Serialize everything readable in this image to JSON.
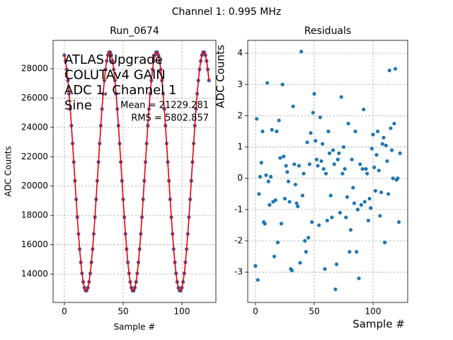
{
  "suptitle": "Channel 1: 0.995 MHz",
  "chart_data": [
    {
      "type": "line",
      "title": "Run_0674",
      "xlabel": "Sample #",
      "ylabel": "ADC Counts",
      "annotations": [
        "ATLAS Upgrade",
        "COLUTAv4 GAIN",
        "ADC 1, Channel 1",
        "Sine"
      ],
      "stats": [
        "Mean = 21229.281",
        "RMS = 5802.857"
      ],
      "xlim": [
        -9.6,
        128.9
      ],
      "ylim": [
        12070,
        29930
      ],
      "xticks": [
        0,
        50,
        100
      ],
      "yticks": [
        14000,
        16000,
        18000,
        20000,
        22000,
        24000,
        26000,
        28000
      ],
      "grid": true,
      "x": [
        0,
        1,
        2,
        3,
        4,
        5,
        6,
        7,
        8,
        9,
        10,
        11,
        12,
        13,
        14,
        15,
        16,
        17,
        18,
        19,
        20,
        21,
        22,
        23,
        24,
        25,
        26,
        27,
        28,
        29,
        30,
        31,
        32,
        33,
        34,
        35,
        36,
        37,
        38,
        39,
        40,
        41,
        42,
        43,
        44,
        45,
        46,
        47,
        48,
        49,
        50,
        51,
        52,
        53,
        54,
        55,
        56,
        57,
        58,
        59,
        60,
        61,
        62,
        63,
        64,
        65,
        66,
        67,
        68,
        69,
        70,
        71,
        72,
        73,
        74,
        75,
        76,
        77,
        78,
        79,
        80,
        81,
        82,
        83,
        84,
        85,
        86,
        87,
        88,
        89,
        90,
        91,
        92,
        93,
        94,
        95,
        96,
        97,
        98,
        99,
        100,
        101,
        102,
        103,
        104,
        105,
        106,
        107,
        108,
        109,
        110,
        111,
        112,
        113,
        114,
        115,
        116,
        117,
        118,
        119,
        120,
        121,
        122,
        123
      ],
      "series": [
        {
          "color": "#e8000b",
          "marker_color": "#4c5a9a",
          "values": [
            28925,
            28530,
            27949,
            27197,
            26293,
            25258,
            24119,
            22902,
            21640,
            20360,
            19098,
            17881,
            16742,
            15707,
            14803,
            14051,
            13470,
            13075,
            12875,
            12875,
            13075,
            13470,
            14051,
            14803,
            15707,
            16742,
            17881,
            19098,
            20360,
            21640,
            22902,
            24119,
            25258,
            26293,
            27197,
            27949,
            28530,
            28925,
            29125,
            29125,
            28925,
            28530,
            27949,
            27197,
            26293,
            25258,
            24119,
            22902,
            21640,
            20360,
            19098,
            17881,
            16742,
            15707,
            14803,
            14051,
            13470,
            13075,
            12875,
            12875,
            13075,
            13470,
            14051,
            14803,
            15707,
            16742,
            17881,
            19098,
            20360,
            21640,
            22902,
            24119,
            25258,
            26293,
            27197,
            27949,
            28530,
            28925,
            29125,
            29125,
            28925,
            28530,
            27949,
            27197,
            26293,
            25258,
            24119,
            22902,
            21640,
            20360,
            19098,
            17881,
            16742,
            15707,
            14803,
            14051,
            13470,
            13075,
            12875,
            12875,
            13075,
            13470,
            14051,
            14803,
            15707,
            16742,
            17881,
            19098,
            20360,
            21640,
            22902,
            24119,
            25258,
            26293,
            27197,
            27949,
            28530,
            28925,
            29125,
            29125,
            28925,
            28530,
            27949,
            27197
          ]
        }
      ]
    },
    {
      "type": "scatter",
      "title": "Residuals",
      "xlabel": "Sample #",
      "ylabel": "ADC Counts",
      "xlim": [
        -6.6,
        129.5
      ],
      "ylim": [
        -3.97,
        4.41
      ],
      "xticks": [
        0,
        50,
        100
      ],
      "yticks": [
        -3,
        -2,
        -1,
        0,
        1,
        2,
        3,
        4
      ],
      "grid": true,
      "color": "#1f77b4",
      "x": [
        0,
        1,
        2,
        3,
        4,
        5,
        6,
        7,
        8,
        9,
        10,
        11,
        12,
        13,
        14,
        15,
        16,
        17,
        18,
        19,
        20,
        21,
        22,
        23,
        24,
        25,
        26,
        27,
        28,
        29,
        30,
        31,
        32,
        33,
        34,
        35,
        36,
        37,
        38,
        39,
        40,
        41,
        42,
        43,
        44,
        45,
        46,
        47,
        48,
        49,
        50,
        51,
        52,
        53,
        54,
        55,
        56,
        57,
        58,
        59,
        60,
        61,
        62,
        63,
        64,
        65,
        66,
        67,
        68,
        69,
        70,
        71,
        72,
        73,
        74,
        75,
        76,
        77,
        78,
        79,
        80,
        81,
        82,
        83,
        84,
        85,
        86,
        87,
        88,
        89,
        90,
        91,
        92,
        93,
        94,
        95,
        96,
        97,
        98,
        99,
        100,
        101,
        102,
        103,
        104,
        105,
        106,
        107,
        108,
        109,
        110,
        111,
        112,
        113,
        114,
        115,
        116,
        117,
        118,
        119,
        120,
        121,
        122,
        123
      ],
      "values": [
        -2.8,
        1.9,
        -3.25,
        -0.5,
        0.05,
        0.5,
        1.5,
        -1.4,
        -1.45,
        0.1,
        3.05,
        -0.1,
        -0.85,
        0.05,
        1.55,
        -0.75,
        -2.5,
        -0.7,
        1.5,
        -2.05,
        1.85,
        0.65,
        -1.45,
        3.0,
        0.7,
        -0.65,
        0.4,
        0.2,
        -0.1,
        -0.75,
        -2.9,
        -2.95,
        2.3,
        0.45,
        -0.2,
        -0.8,
        -0.9,
        0.4,
        -2.7,
        4.05,
        -0.55,
        0.15,
        -2.0,
        -2.35,
        1.15,
        -1.9,
        0.45,
        1.45,
        -1.4,
        2.1,
        2.7,
        1.2,
        0.6,
        0.4,
        -1.5,
        1.95,
        0.55,
        1.1,
        0.3,
        -2.9,
        0.15,
        -1.35,
        1.5,
        0.8,
        -0.55,
        -1.25,
        0.9,
        0.45,
        -3.55,
        -2.75,
        0.6,
        0.8,
        -1.1,
        2.6,
        0.15,
        1.0,
        0.3,
        -1.25,
        -0.6,
        1.75,
        -2.35,
        -1.65,
        0.6,
        -0.3,
        -0.8,
        1.5,
        -2.35,
        -1.0,
        -3.2,
        0.45,
        -0.85,
        0.3,
        2.2,
        -0.75,
        0.3,
        0.15,
        -1.35,
        -0.65,
        -0.95,
        0.95,
        1.4,
        0.35,
        -0.4,
        0.75,
        1.5,
        0.25,
        -1.2,
        -0.45,
        1.1,
        1.3,
        -2.05,
        1.05,
        0.55,
        -0.5,
        3.45,
        1.6,
        0.9,
        0.0,
        1.75,
        3.5,
        -0.05,
        0.0,
        -1.4,
        0.8
      ]
    }
  ]
}
